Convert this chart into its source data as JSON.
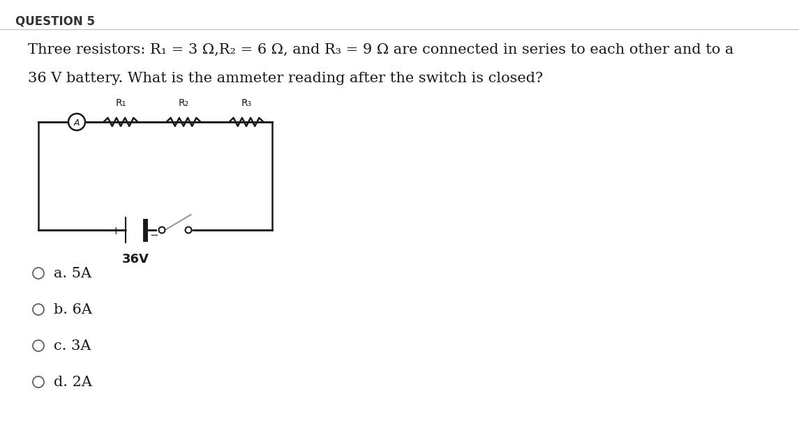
{
  "title": "QUESTION 5",
  "question_text": "Three resistors: R₁ = 3 Ω,R₂ = 6 Ω, and R₃ = 9 Ω are connected in series to each other and to a",
  "question_text2": "36 V battery. What is the ammeter reading after the switch is closed?",
  "options": [
    "a. 5A",
    "b. 6A",
    "c. 3A",
    "d. 2A"
  ],
  "battery_label": "36V",
  "bg_color": "#ffffff",
  "text_color": "#1a1a1a",
  "circuit_color": "#1a1a1a",
  "resistor_labels": [
    "R₁",
    "R₂",
    "R₃"
  ]
}
